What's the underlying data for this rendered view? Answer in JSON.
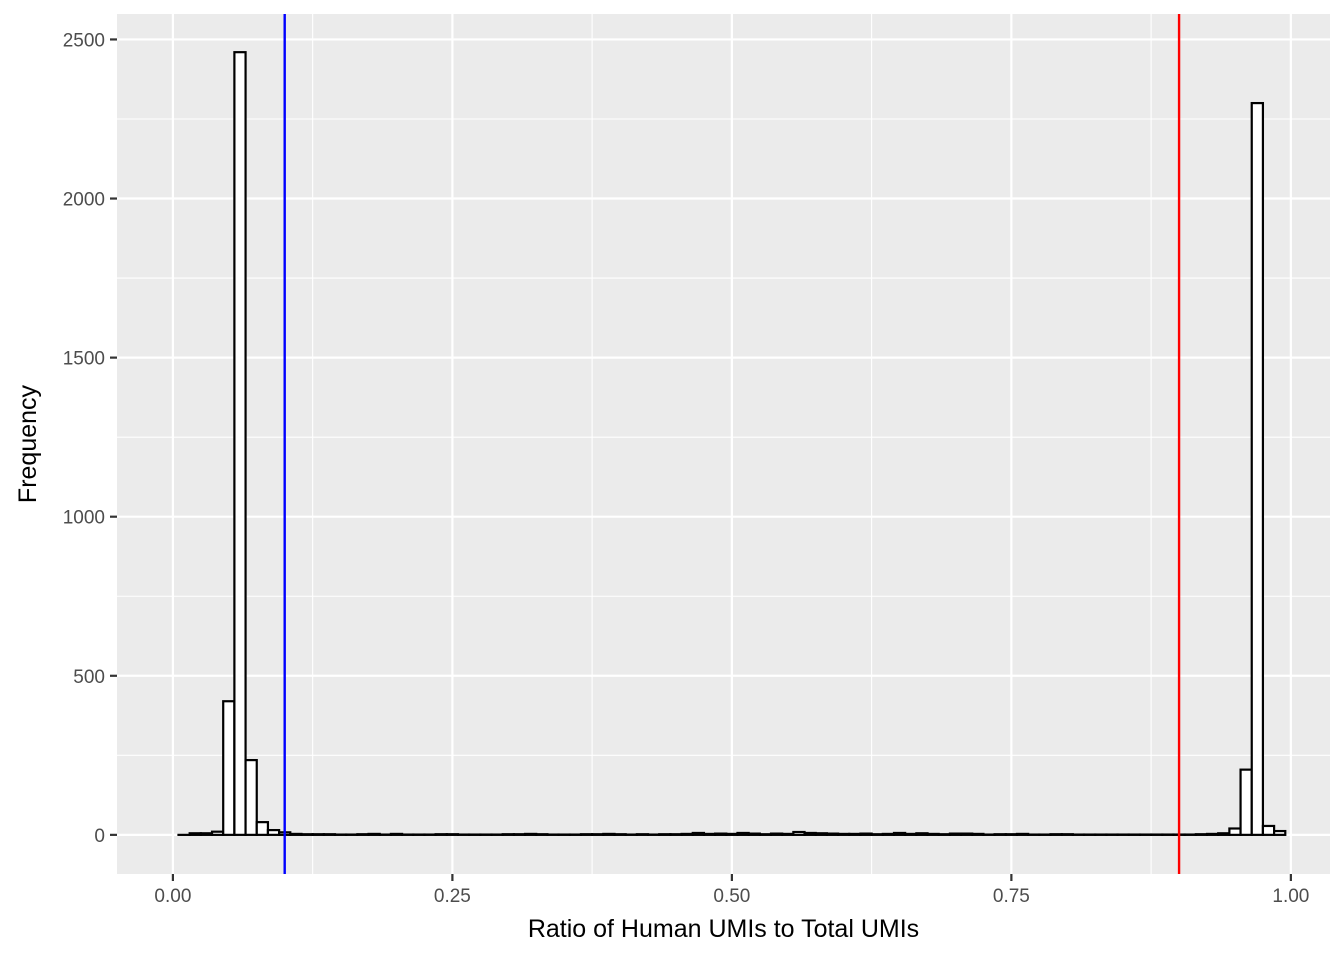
{
  "chart_data": {
    "type": "bar",
    "subtype": "histogram",
    "title": "",
    "xlabel": "Ratio of Human UMIs to Total UMIs",
    "ylabel": "Frequency",
    "xlim": [
      -0.05,
      1.035
    ],
    "ylim": [
      -123,
      2580
    ],
    "x_ticks": [
      0.0,
      0.25,
      0.5,
      0.75,
      1.0
    ],
    "x_tick_labels": [
      "0.00",
      "0.25",
      "0.50",
      "0.75",
      "1.00"
    ],
    "y_ticks": [
      0,
      500,
      1000,
      1500,
      2000,
      2500
    ],
    "y_tick_labels": [
      "0",
      "500",
      "1000",
      "1500",
      "2000",
      "2500"
    ],
    "bin_width": 0.01,
    "bins": [
      {
        "x": 0.01,
        "y": 0
      },
      {
        "x": 0.02,
        "y": 5
      },
      {
        "x": 0.03,
        "y": 5
      },
      {
        "x": 0.04,
        "y": 10
      },
      {
        "x": 0.05,
        "y": 420
      },
      {
        "x": 0.06,
        "y": 2460
      },
      {
        "x": 0.07,
        "y": 235
      },
      {
        "x": 0.08,
        "y": 40
      },
      {
        "x": 0.09,
        "y": 15
      },
      {
        "x": 0.1,
        "y": 8
      },
      {
        "x": 0.11,
        "y": 3
      },
      {
        "x": 0.12,
        "y": 2
      },
      {
        "x": 0.13,
        "y": 2
      },
      {
        "x": 0.14,
        "y": 2
      },
      {
        "x": 0.15,
        "y": 1
      },
      {
        "x": 0.16,
        "y": 1
      },
      {
        "x": 0.17,
        "y": 2
      },
      {
        "x": 0.18,
        "y": 3
      },
      {
        "x": 0.19,
        "y": 1
      },
      {
        "x": 0.2,
        "y": 3
      },
      {
        "x": 0.21,
        "y": 1
      },
      {
        "x": 0.22,
        "y": 1
      },
      {
        "x": 0.23,
        "y": 1
      },
      {
        "x": 0.24,
        "y": 2
      },
      {
        "x": 0.25,
        "y": 2
      },
      {
        "x": 0.26,
        "y": 1
      },
      {
        "x": 0.27,
        "y": 1
      },
      {
        "x": 0.28,
        "y": 1
      },
      {
        "x": 0.29,
        "y": 1
      },
      {
        "x": 0.3,
        "y": 2
      },
      {
        "x": 0.31,
        "y": 2
      },
      {
        "x": 0.32,
        "y": 3
      },
      {
        "x": 0.33,
        "y": 2
      },
      {
        "x": 0.34,
        "y": 1
      },
      {
        "x": 0.35,
        "y": 1
      },
      {
        "x": 0.36,
        "y": 1
      },
      {
        "x": 0.37,
        "y": 2
      },
      {
        "x": 0.38,
        "y": 2
      },
      {
        "x": 0.39,
        "y": 3
      },
      {
        "x": 0.4,
        "y": 2
      },
      {
        "x": 0.41,
        "y": 1
      },
      {
        "x": 0.42,
        "y": 2
      },
      {
        "x": 0.43,
        "y": 1
      },
      {
        "x": 0.44,
        "y": 2
      },
      {
        "x": 0.45,
        "y": 2
      },
      {
        "x": 0.46,
        "y": 3
      },
      {
        "x": 0.47,
        "y": 6
      },
      {
        "x": 0.48,
        "y": 3
      },
      {
        "x": 0.49,
        "y": 4
      },
      {
        "x": 0.5,
        "y": 3
      },
      {
        "x": 0.51,
        "y": 6
      },
      {
        "x": 0.52,
        "y": 4
      },
      {
        "x": 0.53,
        "y": 2
      },
      {
        "x": 0.54,
        "y": 4
      },
      {
        "x": 0.55,
        "y": 3
      },
      {
        "x": 0.56,
        "y": 9
      },
      {
        "x": 0.57,
        "y": 6
      },
      {
        "x": 0.58,
        "y": 5
      },
      {
        "x": 0.59,
        "y": 4
      },
      {
        "x": 0.6,
        "y": 3
      },
      {
        "x": 0.61,
        "y": 3
      },
      {
        "x": 0.62,
        "y": 4
      },
      {
        "x": 0.63,
        "y": 2
      },
      {
        "x": 0.64,
        "y": 3
      },
      {
        "x": 0.65,
        "y": 6
      },
      {
        "x": 0.66,
        "y": 3
      },
      {
        "x": 0.67,
        "y": 5
      },
      {
        "x": 0.68,
        "y": 3
      },
      {
        "x": 0.69,
        "y": 2
      },
      {
        "x": 0.7,
        "y": 4
      },
      {
        "x": 0.71,
        "y": 4
      },
      {
        "x": 0.72,
        "y": 3
      },
      {
        "x": 0.73,
        "y": 1
      },
      {
        "x": 0.74,
        "y": 2
      },
      {
        "x": 0.75,
        "y": 2
      },
      {
        "x": 0.76,
        "y": 3
      },
      {
        "x": 0.77,
        "y": 1
      },
      {
        "x": 0.78,
        "y": 1
      },
      {
        "x": 0.79,
        "y": 2
      },
      {
        "x": 0.8,
        "y": 2
      },
      {
        "x": 0.81,
        "y": 1
      },
      {
        "x": 0.82,
        "y": 1
      },
      {
        "x": 0.83,
        "y": 1
      },
      {
        "x": 0.84,
        "y": 1
      },
      {
        "x": 0.85,
        "y": 1
      },
      {
        "x": 0.86,
        "y": 1
      },
      {
        "x": 0.87,
        "y": 1
      },
      {
        "x": 0.88,
        "y": 1
      },
      {
        "x": 0.89,
        "y": 1
      },
      {
        "x": 0.9,
        "y": 1
      },
      {
        "x": 0.91,
        "y": 1
      },
      {
        "x": 0.92,
        "y": 2
      },
      {
        "x": 0.93,
        "y": 3
      },
      {
        "x": 0.94,
        "y": 5
      },
      {
        "x": 0.95,
        "y": 20
      },
      {
        "x": 0.96,
        "y": 205
      },
      {
        "x": 0.97,
        "y": 2300
      },
      {
        "x": 0.98,
        "y": 28
      },
      {
        "x": 0.99,
        "y": 12
      }
    ],
    "vlines": [
      {
        "x": 0.1,
        "color": "#0000ff"
      },
      {
        "x": 0.9,
        "color": "#ff0000"
      }
    ],
    "grid": true,
    "panel_background": "#ebebeb",
    "grid_color": "#ffffff",
    "bar_fill": "#ffffff",
    "bar_outline": "#000000",
    "legend": "none"
  }
}
